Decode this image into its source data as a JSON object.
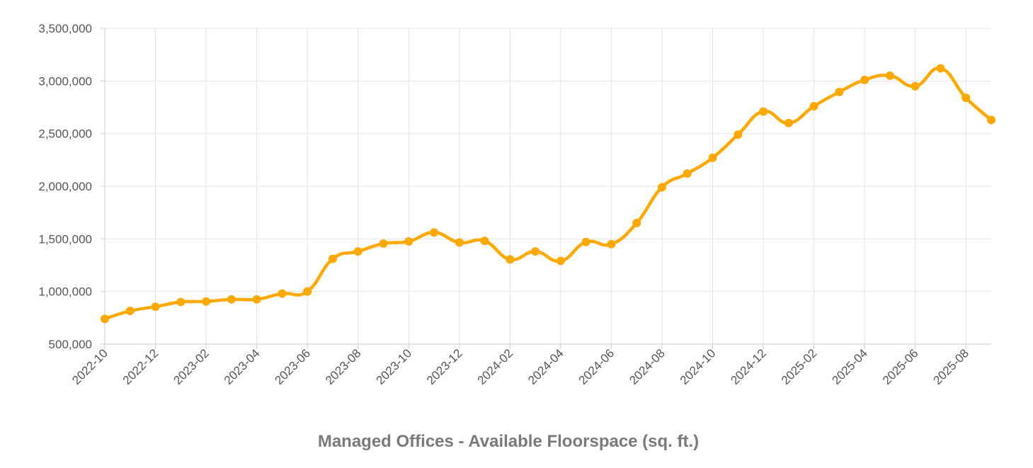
{
  "chart_data": {
    "type": "line",
    "title": "",
    "xlabel": "Managed Offices - Available Floorspace (sq. ft.)",
    "ylabel": "",
    "ylim": [
      500000,
      3500000
    ],
    "y_ticks": [
      500000,
      1000000,
      1500000,
      2000000,
      2500000,
      3000000,
      3500000
    ],
    "y_tick_labels": [
      "500,000",
      "1,000,000",
      "1,500,000",
      "2,000,000",
      "2,500,000",
      "3,000,000",
      "3,500,000"
    ],
    "x": [
      "2022-10",
      "2022-11",
      "2022-12",
      "2023-01",
      "2023-02",
      "2023-03",
      "2023-04",
      "2023-05",
      "2023-06",
      "2023-07",
      "2023-08",
      "2023-09",
      "2023-10",
      "2023-11",
      "2023-12",
      "2024-01",
      "2024-02",
      "2024-03",
      "2024-04",
      "2024-05",
      "2024-06",
      "2024-07",
      "2024-08",
      "2024-09",
      "2024-10",
      "2024-11",
      "2024-12",
      "2025-01",
      "2025-02",
      "2025-03",
      "2025-04",
      "2025-05",
      "2025-06",
      "2025-07",
      "2025-08",
      "2025-09"
    ],
    "x_tick_labels": [
      "2022-10",
      "2022-12",
      "2023-02",
      "2023-04",
      "2023-06",
      "2023-08",
      "2023-10",
      "2023-12",
      "2024-02",
      "2024-04",
      "2024-06",
      "2024-08",
      "2024-10",
      "2024-12",
      "2025-02",
      "2025-04",
      "2025-06",
      "2025-08"
    ],
    "series": [
      {
        "values": [
          740000,
          815000,
          855000,
          900000,
          905000,
          925000,
          925000,
          980000,
          1000000,
          1310000,
          1380000,
          1455000,
          1475000,
          1560000,
          1465000,
          1480000,
          1305000,
          1380000,
          1290000,
          1470000,
          1450000,
          1650000,
          1990000,
          2120000,
          2270000,
          2490000,
          2710000,
          2600000,
          2760000,
          2895000,
          3010000,
          3050000,
          2950000,
          3120000,
          2840000,
          2630000
        ],
        "color": "#FFA800"
      }
    ],
    "grid": true,
    "legend": "none"
  }
}
